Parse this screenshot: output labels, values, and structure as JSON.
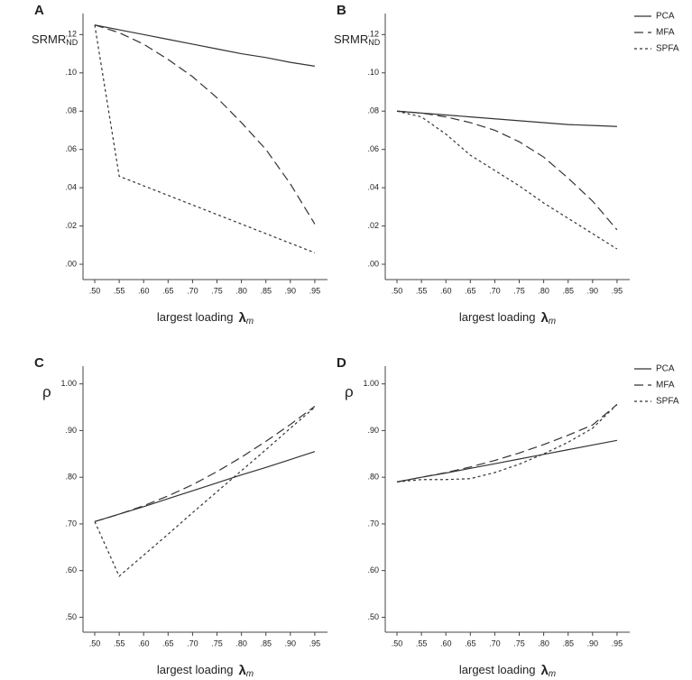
{
  "chart_data": [
    {
      "type": "line",
      "panel": "A",
      "y_label": "SRMR",
      "y_label_sub": "ND",
      "x_label": "largest loading",
      "x_symbol": "λ",
      "x_symbol_sub": "m",
      "x": [
        0.5,
        0.55,
        0.6,
        0.65,
        0.7,
        0.75,
        0.8,
        0.85,
        0.9,
        0.95
      ],
      "xlim": [
        0.476,
        0.976
      ],
      "xticks": [
        {
          "value": 0.5,
          "label": ".50"
        },
        {
          "value": 0.55,
          "label": ".55"
        },
        {
          "value": 0.6,
          "label": ".60"
        },
        {
          "value": 0.65,
          "label": ".65"
        },
        {
          "value": 0.7,
          "label": ".70"
        },
        {
          "value": 0.75,
          "label": ".75"
        },
        {
          "value": 0.8,
          "label": ".80"
        },
        {
          "value": 0.85,
          "label": ".85"
        },
        {
          "value": 0.9,
          "label": ".90"
        },
        {
          "value": 0.95,
          "label": ".95"
        }
      ],
      "ylim": [
        -0.008,
        0.131
      ],
      "yticks": [
        {
          "value": 0,
          "label": ".00"
        },
        {
          "value": 0.02,
          "label": ".02"
        },
        {
          "value": 0.04,
          "label": ".04"
        },
        {
          "value": 0.06,
          "label": ".06"
        },
        {
          "value": 0.08,
          "label": ".08"
        },
        {
          "value": 0.1,
          "label": ".10"
        },
        {
          "value": 0.12,
          "label": ".12"
        }
      ],
      "legend": false,
      "series": [
        {
          "name": "PCA",
          "color": "#333333",
          "dash": "none",
          "values": [
            0.125,
            0.1225,
            0.12,
            0.1175,
            0.115,
            0.1125,
            0.11,
            0.108,
            0.1055,
            0.1035
          ]
        },
        {
          "name": "MFA",
          "color": "#333333",
          "dash": "10,5",
          "values": [
            0.125,
            0.121,
            0.115,
            0.107,
            0.098,
            0.087,
            0.074,
            0.06,
            0.042,
            0.021
          ]
        },
        {
          "name": "SPFA",
          "color": "#333333",
          "dash": "3,3",
          "values": [
            0.125,
            0.046,
            0.041,
            0.036,
            0.031,
            0.026,
            0.021,
            0.016,
            0.011,
            0.006
          ]
        }
      ]
    },
    {
      "type": "line",
      "panel": "B",
      "y_label": "SRMR",
      "y_label_sub": "ND",
      "x_label": "largest loading",
      "x_symbol": "λ",
      "x_symbol_sub": "m",
      "x": [
        0.5,
        0.55,
        0.6,
        0.65,
        0.7,
        0.75,
        0.8,
        0.85,
        0.9,
        0.95
      ],
      "xlim": [
        0.476,
        0.976
      ],
      "xticks": [
        {
          "value": 0.5,
          "label": ".50"
        },
        {
          "value": 0.55,
          "label": ".55"
        },
        {
          "value": 0.6,
          "label": ".60"
        },
        {
          "value": 0.65,
          "label": ".65"
        },
        {
          "value": 0.7,
          "label": ".70"
        },
        {
          "value": 0.75,
          "label": ".75"
        },
        {
          "value": 0.8,
          "label": ".80"
        },
        {
          "value": 0.85,
          "label": ".85"
        },
        {
          "value": 0.9,
          "label": ".90"
        },
        {
          "value": 0.95,
          "label": ".95"
        }
      ],
      "ylim": [
        -0.008,
        0.131
      ],
      "yticks": [
        {
          "value": 0,
          "label": ".00"
        },
        {
          "value": 0.02,
          "label": ".02"
        },
        {
          "value": 0.04,
          "label": ".04"
        },
        {
          "value": 0.06,
          "label": ".06"
        },
        {
          "value": 0.08,
          "label": ".08"
        },
        {
          "value": 0.1,
          "label": ".10"
        },
        {
          "value": 0.12,
          "label": ".12"
        }
      ],
      "legend": true,
      "series": [
        {
          "name": "PCA",
          "color": "#333333",
          "dash": "none",
          "values": [
            0.08,
            0.079,
            0.078,
            0.077,
            0.076,
            0.075,
            0.074,
            0.073,
            0.0725,
            0.072
          ]
        },
        {
          "name": "MFA",
          "color": "#333333",
          "dash": "10,5",
          "values": [
            0.08,
            0.079,
            0.077,
            0.074,
            0.07,
            0.064,
            0.056,
            0.045,
            0.033,
            0.018
          ]
        },
        {
          "name": "SPFA",
          "color": "#333333",
          "dash": "3,3",
          "values": [
            0.08,
            0.077,
            0.068,
            0.057,
            0.049,
            0.041,
            0.032,
            0.024,
            0.016,
            0.008
          ]
        }
      ]
    },
    {
      "type": "line",
      "panel": "C",
      "y_label": "ρ",
      "x_label": "largest loading",
      "x_symbol": "λ",
      "x_symbol_sub": "m",
      "x": [
        0.5,
        0.55,
        0.6,
        0.65,
        0.7,
        0.75,
        0.8,
        0.85,
        0.9,
        0.95
      ],
      "xlim": [
        0.476,
        0.976
      ],
      "xticks": [
        {
          "value": 0.5,
          "label": ".50"
        },
        {
          "value": 0.55,
          "label": ".55"
        },
        {
          "value": 0.6,
          "label": ".60"
        },
        {
          "value": 0.65,
          "label": ".65"
        },
        {
          "value": 0.7,
          "label": ".70"
        },
        {
          "value": 0.75,
          "label": ".75"
        },
        {
          "value": 0.8,
          "label": ".80"
        },
        {
          "value": 0.85,
          "label": ".85"
        },
        {
          "value": 0.9,
          "label": ".90"
        },
        {
          "value": 0.95,
          "label": ".95"
        }
      ],
      "ylim": [
        0.468,
        1.038
      ],
      "yticks": [
        {
          "value": 0.5,
          "label": ".50"
        },
        {
          "value": 0.6,
          "label": ".60"
        },
        {
          "value": 0.7,
          "label": ".70"
        },
        {
          "value": 0.8,
          "label": ".80"
        },
        {
          "value": 0.9,
          "label": ".90"
        },
        {
          "value": 1,
          "label": "1.00"
        }
      ],
      "legend": false,
      "series": [
        {
          "name": "PCA",
          "color": "#333333",
          "dash": "none",
          "values": [
            0.705,
            0.721,
            0.737,
            0.754,
            0.771,
            0.788,
            0.805,
            0.821,
            0.838,
            0.855
          ]
        },
        {
          "name": "MFA",
          "color": "#333333",
          "dash": "10,5",
          "values": [
            0.705,
            0.721,
            0.739,
            0.76,
            0.784,
            0.812,
            0.843,
            0.877,
            0.913,
            0.952
          ]
        },
        {
          "name": "SPFA",
          "color": "#333333",
          "dash": "3,3",
          "values": [
            0.705,
            0.588,
            0.633,
            0.678,
            0.724,
            0.769,
            0.814,
            0.859,
            0.905,
            0.95
          ]
        }
      ]
    },
    {
      "type": "line",
      "panel": "D",
      "y_label": "ρ",
      "x_label": "largest loading",
      "x_symbol": "λ",
      "x_symbol_sub": "m",
      "x": [
        0.5,
        0.55,
        0.6,
        0.65,
        0.7,
        0.75,
        0.8,
        0.85,
        0.9,
        0.95
      ],
      "xlim": [
        0.476,
        0.976
      ],
      "xticks": [
        {
          "value": 0.5,
          "label": ".50"
        },
        {
          "value": 0.55,
          "label": ".55"
        },
        {
          "value": 0.6,
          "label": ".60"
        },
        {
          "value": 0.65,
          "label": ".65"
        },
        {
          "value": 0.7,
          "label": ".70"
        },
        {
          "value": 0.75,
          "label": ".75"
        },
        {
          "value": 0.8,
          "label": ".80"
        },
        {
          "value": 0.85,
          "label": ".85"
        },
        {
          "value": 0.9,
          "label": ".90"
        },
        {
          "value": 0.95,
          "label": ".95"
        }
      ],
      "ylim": [
        0.468,
        1.038
      ],
      "yticks": [
        {
          "value": 0.5,
          "label": ".50"
        },
        {
          "value": 0.6,
          "label": ".60"
        },
        {
          "value": 0.7,
          "label": ".70"
        },
        {
          "value": 0.8,
          "label": ".80"
        },
        {
          "value": 0.9,
          "label": ".90"
        },
        {
          "value": 1,
          "label": "1.00"
        }
      ],
      "legend": true,
      "series": [
        {
          "name": "PCA",
          "color": "#333333",
          "dash": "none",
          "values": [
            0.79,
            0.8,
            0.809,
            0.819,
            0.829,
            0.839,
            0.849,
            0.859,
            0.869,
            0.879
          ]
        },
        {
          "name": "MFA",
          "color": "#333333",
          "dash": "10,5",
          "values": [
            0.79,
            0.8,
            0.81,
            0.822,
            0.836,
            0.852,
            0.87,
            0.89,
            0.912,
            0.956
          ]
        },
        {
          "name": "SPFA",
          "color": "#333333",
          "dash": "3,3",
          "values": [
            0.79,
            0.795,
            0.795,
            0.797,
            0.81,
            0.828,
            0.85,
            0.875,
            0.905,
            0.956
          ]
        }
      ]
    }
  ]
}
